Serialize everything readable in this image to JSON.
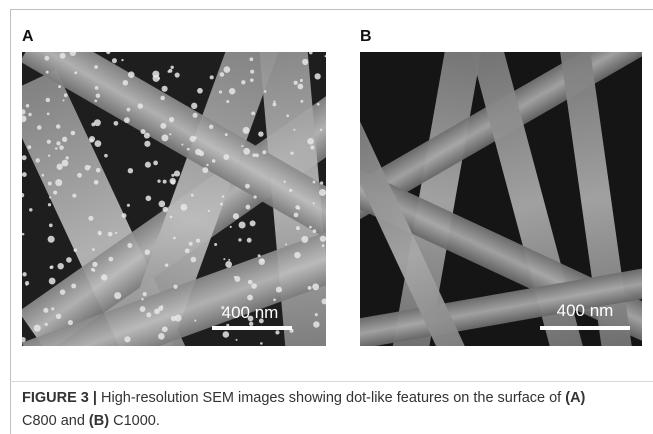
{
  "panels": [
    {
      "label": "A",
      "scale": "400 nm"
    },
    {
      "label": "B",
      "scale": "400 nm"
    }
  ],
  "caption": {
    "label": "FIGURE 3 |",
    "text1": "High-resolution SEM images showing dot-like features on the surface of",
    "ref1": "(A)",
    "text2": "C800 and",
    "ref2": "(B)",
    "text3": "C1000."
  }
}
